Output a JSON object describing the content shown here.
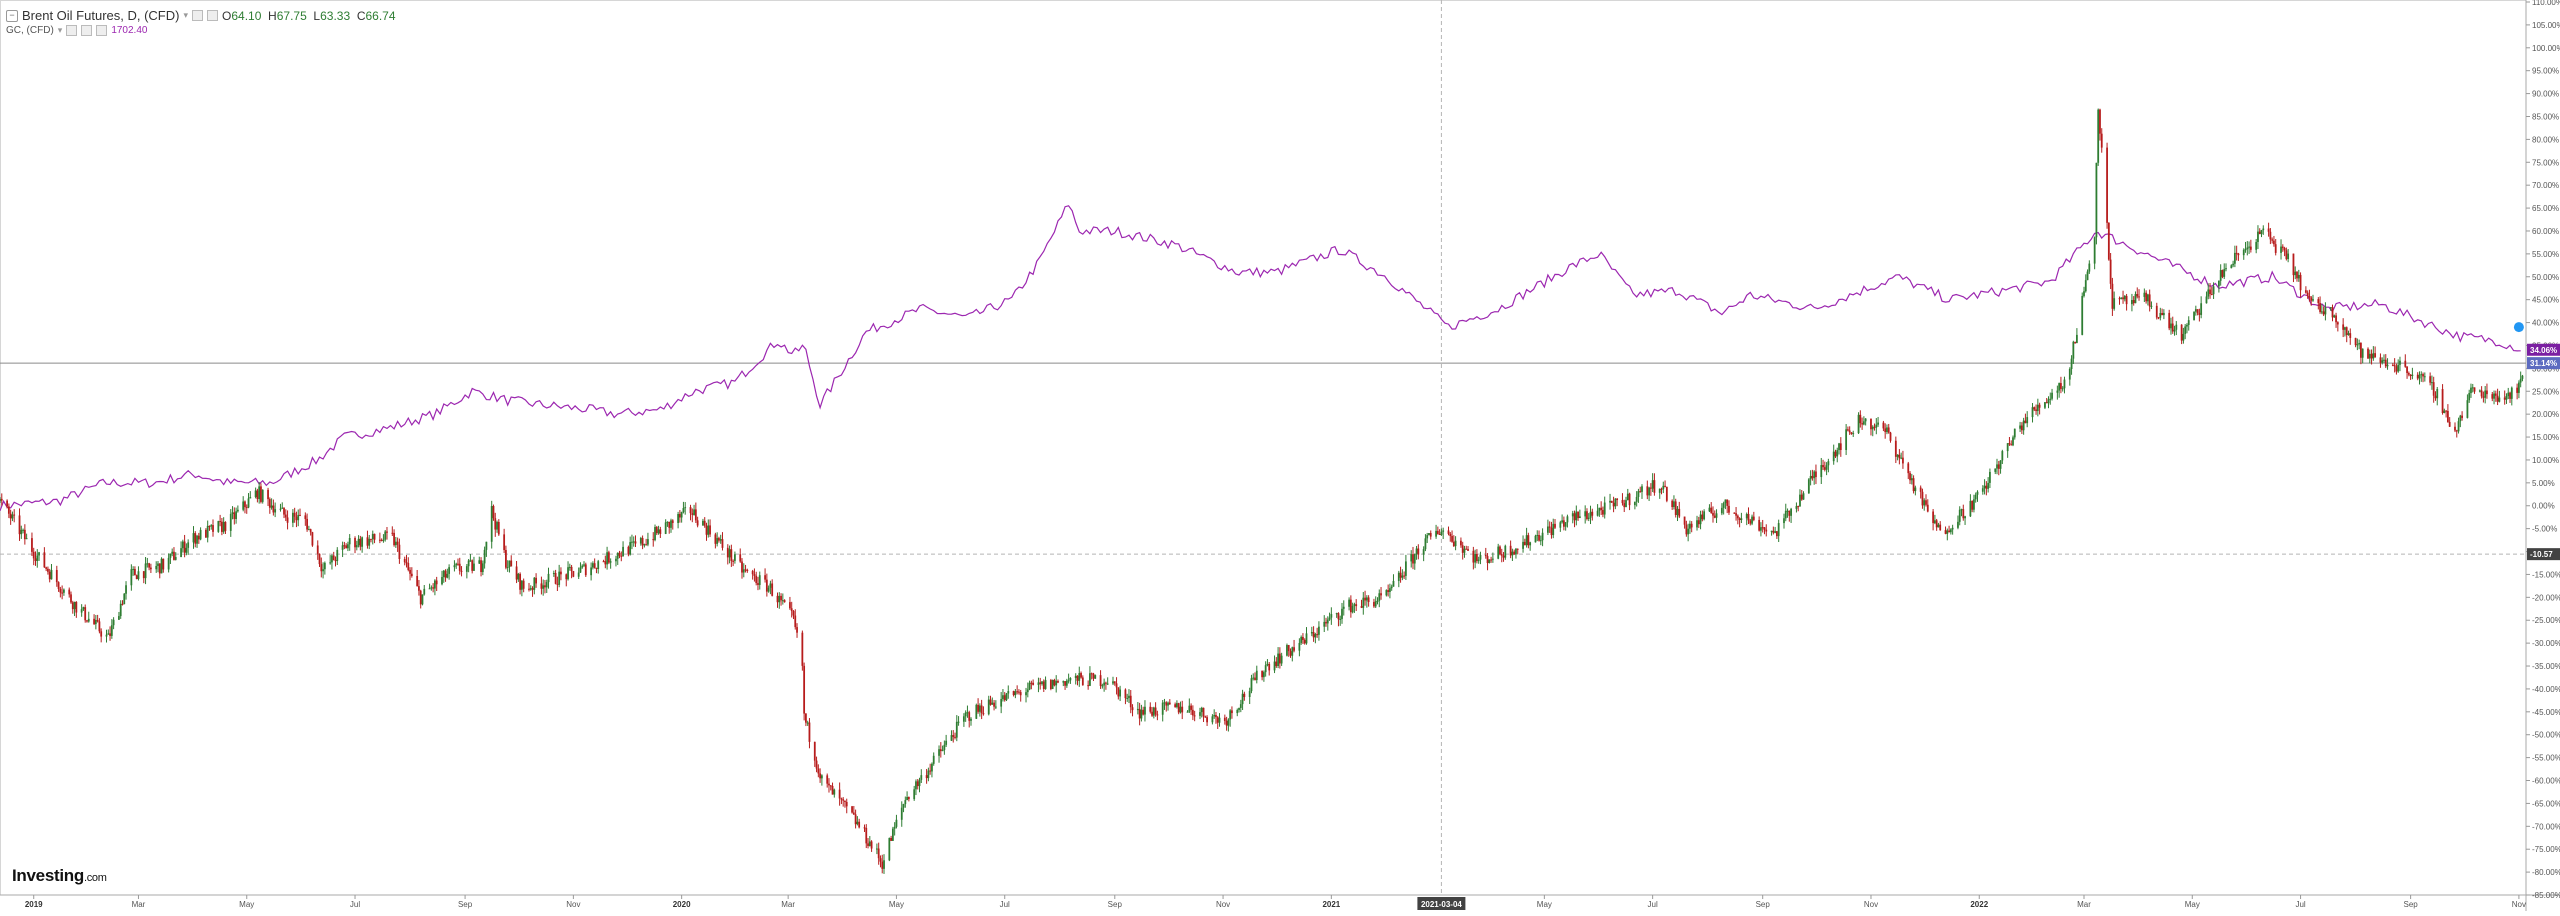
{
  "legend": {
    "main_title": "Brent Oil Futures, D, (CFD)",
    "open_label": "O",
    "open": "64.10",
    "high_label": "H",
    "high": "67.75",
    "low_label": "L",
    "low": "63.33",
    "close_label": "C",
    "close": "66.74",
    "overlay_title": "GC, (CFD)",
    "overlay_value": "1702.40"
  },
  "brand": {
    "logo_text": "Investing",
    "logo_suffix": ".com"
  },
  "colors": {
    "up_candle": "#2e7d32",
    "down_candle": "#b71c1c",
    "gold_line": "#9c27b0",
    "gold_badge": "#7b1fa2",
    "brent_badge": "#5c6bc0",
    "crosshair_badge": "#424242",
    "axis_text": "#555555"
  },
  "chart_data": {
    "type": "line",
    "title": "Brent Oil Futures, D, (CFD)",
    "y_axis": {
      "scale": "percent",
      "ylim": [
        -85,
        110
      ],
      "tick_step": 5,
      "side": "right"
    },
    "x_axis": {
      "range": [
        "2018-12-13",
        "2022-11-05"
      ],
      "ticks": [
        {
          "date": "2019-01-01",
          "label": "2019",
          "bold": true
        },
        {
          "date": "2019-03-01",
          "label": "Mar"
        },
        {
          "date": "2019-05-01",
          "label": "May"
        },
        {
          "date": "2019-07-01",
          "label": "Jul"
        },
        {
          "date": "2019-09-01",
          "label": "Sep"
        },
        {
          "date": "2019-11-01",
          "label": "Nov"
        },
        {
          "date": "2020-01-01",
          "label": "2020",
          "bold": true
        },
        {
          "date": "2020-03-01",
          "label": "Mar"
        },
        {
          "date": "2020-05-01",
          "label": "May"
        },
        {
          "date": "2020-07-01",
          "label": "Jul"
        },
        {
          "date": "2020-09-01",
          "label": "Sep"
        },
        {
          "date": "2020-11-01",
          "label": "Nov"
        },
        {
          "date": "2021-01-01",
          "label": "2021",
          "bold": true
        },
        {
          "date": "2021-05-01",
          "label": "May"
        },
        {
          "date": "2021-07-01",
          "label": "Jul"
        },
        {
          "date": "2021-09-01",
          "label": "Sep"
        },
        {
          "date": "2021-11-01",
          "label": "Nov"
        },
        {
          "date": "2022-01-01",
          "label": "2022",
          "bold": true
        },
        {
          "date": "2022-03-01",
          "label": "Mar"
        },
        {
          "date": "2022-05-01",
          "label": "May"
        },
        {
          "date": "2022-07-01",
          "label": "Jul"
        },
        {
          "date": "2022-09-01",
          "label": "Sep"
        },
        {
          "date": "2022-11-01",
          "label": "Nov"
        }
      ]
    },
    "crosshair": {
      "date": "2021-03-04",
      "label": "2021-03-04",
      "value": -10.57,
      "value_label": "-10.57"
    },
    "reference_line": {
      "value": 31.14
    },
    "series": [
      {
        "name": "Brent Oil Futures, D, (CFD)",
        "type": "candlestick-percent",
        "last_label": "31.14%",
        "points": [
          [
            "2018-12-13",
            1
          ],
          [
            "2019-01-01",
            -10
          ],
          [
            "2019-01-25",
            -22
          ],
          [
            "2019-02-12",
            -29
          ],
          [
            "2019-02-25",
            -15
          ],
          [
            "2019-03-15",
            -13
          ],
          [
            "2019-04-01",
            -7
          ],
          [
            "2019-04-20",
            -4
          ],
          [
            "2019-05-07",
            3
          ],
          [
            "2019-05-22",
            -2
          ],
          [
            "2019-06-03",
            -3
          ],
          [
            "2019-06-13",
            -14
          ],
          [
            "2019-06-28",
            -8
          ],
          [
            "2019-07-22",
            -7
          ],
          [
            "2019-08-07",
            -20
          ],
          [
            "2019-08-25",
            -14
          ],
          [
            "2019-09-10",
            -13
          ],
          [
            "2019-09-16",
            -1
          ],
          [
            "2019-09-24",
            -12
          ],
          [
            "2019-10-04",
            -18
          ],
          [
            "2019-11-06",
            -14
          ],
          [
            "2019-12-10",
            -8
          ],
          [
            "2020-01-06",
            -1
          ],
          [
            "2020-01-20",
            -7
          ],
          [
            "2020-02-04",
            -14
          ],
          [
            "2020-02-20",
            -18
          ],
          [
            "2020-03-04",
            -25
          ],
          [
            "2020-03-09",
            -35
          ],
          [
            "2020-03-10",
            -46
          ],
          [
            "2020-03-20",
            -60
          ],
          [
            "2020-04-02",
            -66
          ],
          [
            "2020-04-10",
            -70
          ],
          [
            "2020-04-23",
            -78
          ],
          [
            "2020-05-06",
            -64
          ],
          [
            "2020-05-20",
            -57
          ],
          [
            "2020-06-09",
            -46
          ],
          [
            "2020-06-24",
            -43
          ],
          [
            "2020-07-15",
            -40
          ],
          [
            "2020-08-06",
            -38
          ],
          [
            "2020-08-28",
            -38
          ],
          [
            "2020-09-15",
            -45
          ],
          [
            "2020-10-10",
            -44
          ],
          [
            "2020-11-02",
            -47
          ],
          [
            "2020-11-25",
            -35
          ],
          [
            "2020-12-15",
            -30
          ],
          [
            "2021-01-10",
            -22
          ],
          [
            "2021-02-01",
            -20
          ],
          [
            "2021-02-20",
            -9
          ],
          [
            "2021-03-04",
            -5
          ],
          [
            "2021-03-25",
            -12
          ],
          [
            "2021-04-15",
            -9
          ],
          [
            "2021-05-15",
            -3
          ],
          [
            "2021-06-10",
            0
          ],
          [
            "2021-07-05",
            5
          ],
          [
            "2021-07-20",
            -5
          ],
          [
            "2021-08-10",
            0
          ],
          [
            "2021-09-08",
            -6
          ],
          [
            "2021-10-01",
            7
          ],
          [
            "2021-10-26",
            19
          ],
          [
            "2021-11-10",
            16
          ],
          [
            "2021-12-01",
            0
          ],
          [
            "2021-12-10",
            -6
          ],
          [
            "2022-01-01",
            2
          ],
          [
            "2022-01-25",
            18
          ],
          [
            "2022-02-20",
            28
          ],
          [
            "2022-03-07",
            60
          ],
          [
            "2022-03-09",
            88
          ],
          [
            "2022-03-17",
            44
          ],
          [
            "2022-04-05",
            45
          ],
          [
            "2022-04-25",
            37
          ],
          [
            "2022-05-20",
            52
          ],
          [
            "2022-06-10",
            60
          ],
          [
            "2022-06-25",
            53
          ],
          [
            "2022-07-07",
            44
          ],
          [
            "2022-07-20",
            42
          ],
          [
            "2022-08-05",
            33
          ],
          [
            "2022-08-30",
            30
          ],
          [
            "2022-09-15",
            25
          ],
          [
            "2022-09-26",
            16
          ],
          [
            "2022-10-05",
            25
          ],
          [
            "2022-10-25",
            24
          ],
          [
            "2022-11-03",
            27
          ]
        ]
      },
      {
        "name": "GC, (CFD)",
        "type": "line",
        "last_label": "34.06%",
        "points": [
          [
            "2018-12-13",
            0
          ],
          [
            "2019-01-15",
            1
          ],
          [
            "2019-02-10",
            5
          ],
          [
            "2019-03-10",
            5
          ],
          [
            "2019-04-01",
            7
          ],
          [
            "2019-04-20",
            5
          ],
          [
            "2019-05-15",
            5
          ],
          [
            "2019-06-10",
            10
          ],
          [
            "2019-06-25",
            15
          ],
          [
            "2019-07-20",
            17
          ],
          [
            "2019-08-15",
            20
          ],
          [
            "2019-09-05",
            25
          ],
          [
            "2019-09-25",
            23
          ],
          [
            "2019-10-15",
            22
          ],
          [
            "2019-11-10",
            21
          ],
          [
            "2019-11-25",
            20
          ],
          [
            "2019-12-20",
            21
          ],
          [
            "2020-01-08",
            25
          ],
          [
            "2020-01-31",
            27
          ],
          [
            "2020-02-24",
            36
          ],
          [
            "2020-03-04",
            33
          ],
          [
            "2020-03-10",
            35
          ],
          [
            "2020-03-19",
            22
          ],
          [
            "2020-04-14",
            38
          ],
          [
            "2020-05-15",
            43
          ],
          [
            "2020-06-10",
            41
          ],
          [
            "2020-07-05",
            45
          ],
          [
            "2020-07-20",
            53
          ],
          [
            "2020-08-06",
            66
          ],
          [
            "2020-08-12",
            60
          ],
          [
            "2020-09-01",
            60
          ],
          [
            "2020-10-05",
            57
          ],
          [
            "2020-11-09",
            51
          ],
          [
            "2020-12-01",
            51
          ],
          [
            "2021-01-06",
            56
          ],
          [
            "2021-02-01",
            50
          ],
          [
            "2021-03-08",
            39
          ],
          [
            "2021-04-05",
            43
          ],
          [
            "2021-05-15",
            52
          ],
          [
            "2021-06-01",
            55
          ],
          [
            "2021-06-20",
            46
          ],
          [
            "2021-07-15",
            47
          ],
          [
            "2021-08-09",
            42
          ],
          [
            "2021-08-25",
            46
          ],
          [
            "2021-09-30",
            43
          ],
          [
            "2021-11-16",
            50
          ],
          [
            "2021-12-15",
            45
          ],
          [
            "2022-01-15",
            47
          ],
          [
            "2022-02-10",
            49
          ],
          [
            "2022-03-08",
            60
          ],
          [
            "2022-04-05",
            55
          ],
          [
            "2022-05-15",
            48
          ],
          [
            "2022-06-15",
            50
          ],
          [
            "2022-07-15",
            43
          ],
          [
            "2022-08-15",
            44
          ],
          [
            "2022-09-28",
            37
          ],
          [
            "2022-10-20",
            36
          ],
          [
            "2022-11-03",
            34
          ]
        ]
      }
    ]
  }
}
